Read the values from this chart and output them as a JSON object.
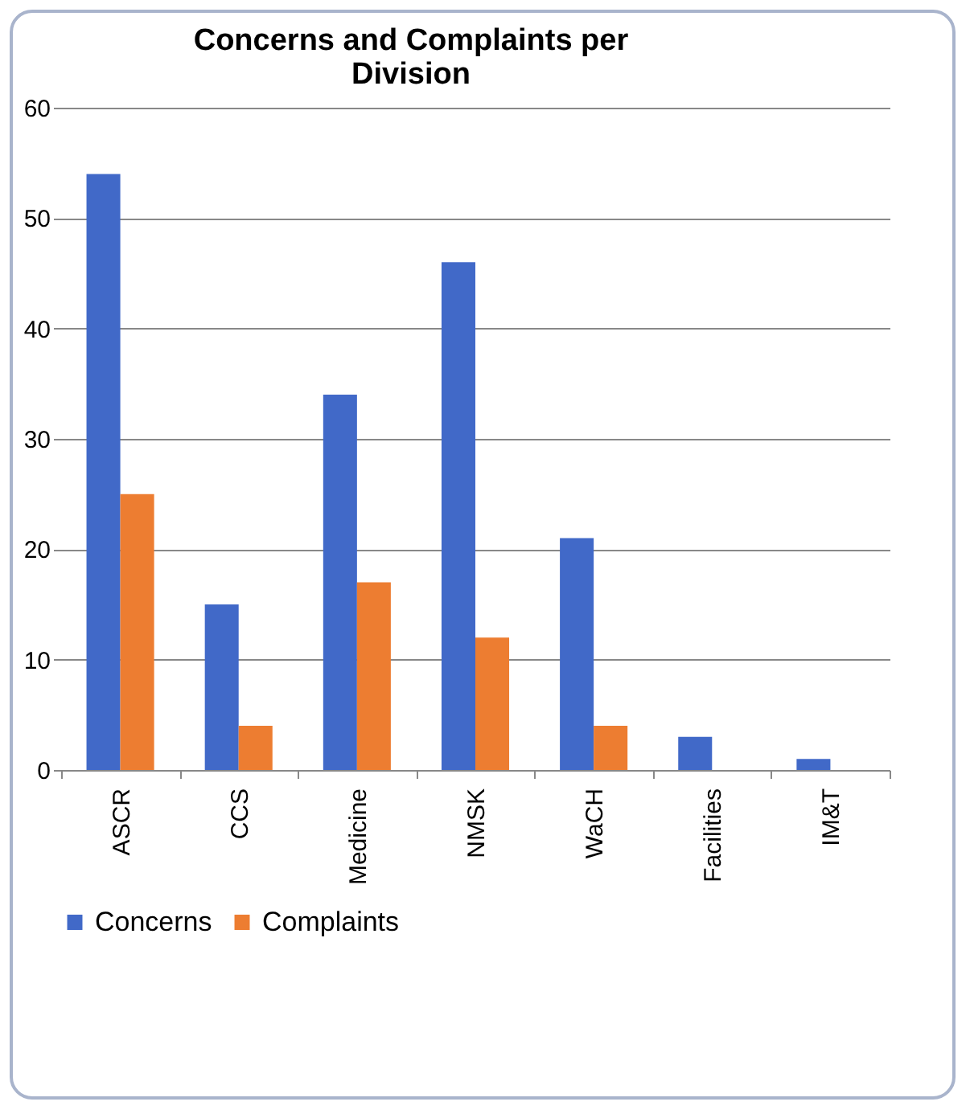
{
  "chart_data": {
    "type": "bar",
    "title": "Concerns and Complaints per Division",
    "categories": [
      "ASCR",
      "CCS",
      "Medicine",
      "NMSK",
      "WaCH",
      "Facilities",
      "IM&T"
    ],
    "series": [
      {
        "name": "Concerns",
        "color": "#4169c8",
        "values": [
          54,
          15,
          34,
          46,
          21,
          3,
          1
        ]
      },
      {
        "name": "Complaints",
        "color": "#ed7d31",
        "values": [
          25,
          4,
          17,
          12,
          4,
          0,
          0
        ]
      }
    ],
    "ylim": [
      0,
      60
    ],
    "yticks": [
      0,
      10,
      20,
      30,
      40,
      50,
      60
    ],
    "grid": "y",
    "legend": "bottom"
  }
}
